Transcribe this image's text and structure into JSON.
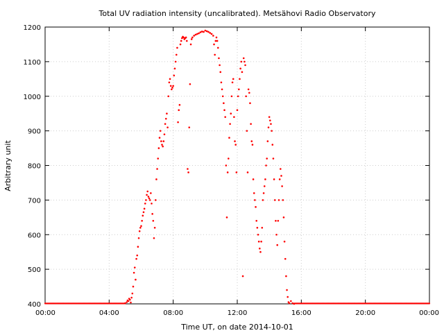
{
  "chart_data": {
    "type": "scatter",
    "title": "Total UV radiation intensity (uncalibrated). Metsähovi Radio Observatory",
    "xlabel": "Time UT, on date 2014-10-01",
    "ylabel": "Arbitrary unit",
    "x_unit": "hours UT",
    "xlim": [
      0,
      24
    ],
    "ylim": [
      400,
      1200
    ],
    "x_ticks": [
      {
        "value": 0,
        "label": "00:00"
      },
      {
        "value": 4,
        "label": "04:00"
      },
      {
        "value": 8,
        "label": "08:00"
      },
      {
        "value": 12,
        "label": "12:00"
      },
      {
        "value": 16,
        "label": "16:00"
      },
      {
        "value": 20,
        "label": "20:00"
      },
      {
        "value": 24,
        "label": "00:00"
      }
    ],
    "y_ticks": [
      400,
      500,
      600,
      700,
      800,
      900,
      1000,
      1100,
      1200
    ],
    "grid": true,
    "series_color": "#ff0000",
    "series": [
      {
        "points": [
          [
            5.0,
            402
          ],
          [
            5.1,
            405
          ],
          [
            5.15,
            410
          ],
          [
            5.2,
            408
          ],
          [
            5.25,
            415
          ],
          [
            5.3,
            412
          ],
          [
            5.35,
            404
          ],
          [
            5.4,
            418
          ],
          [
            5.45,
            430
          ],
          [
            5.5,
            450
          ],
          [
            5.55,
            490
          ],
          [
            5.6,
            505
          ],
          [
            5.65,
            470
          ],
          [
            5.7,
            530
          ],
          [
            5.75,
            540
          ],
          [
            5.8,
            565
          ],
          [
            5.85,
            590
          ],
          [
            5.9,
            610
          ],
          [
            5.95,
            620
          ],
          [
            6.0,
            625
          ],
          [
            6.05,
            640
          ],
          [
            6.1,
            655
          ],
          [
            6.15,
            665
          ],
          [
            6.2,
            675
          ],
          [
            6.25,
            690
          ],
          [
            6.3,
            700
          ],
          [
            6.35,
            715
          ],
          [
            6.4,
            725
          ],
          [
            6.45,
            710
          ],
          [
            6.5,
            705
          ],
          [
            6.55,
            700
          ],
          [
            6.6,
            720
          ],
          [
            6.65,
            690
          ],
          [
            6.7,
            660
          ],
          [
            6.75,
            640
          ],
          [
            6.8,
            590
          ],
          [
            6.85,
            620
          ],
          [
            6.9,
            700
          ],
          [
            6.95,
            760
          ],
          [
            7.0,
            790
          ],
          [
            7.05,
            820
          ],
          [
            7.1,
            850
          ],
          [
            7.15,
            880
          ],
          [
            7.2,
            900
          ],
          [
            7.25,
            870
          ],
          [
            7.3,
            860
          ],
          [
            7.35,
            855
          ],
          [
            7.4,
            870
          ],
          [
            7.45,
            890
          ],
          [
            7.5,
            920
          ],
          [
            7.55,
            935
          ],
          [
            7.6,
            950
          ],
          [
            7.65,
            910
          ],
          [
            7.7,
            1000
          ],
          [
            7.75,
            1040
          ],
          [
            7.8,
            1050
          ],
          [
            7.85,
            1030
          ],
          [
            7.9,
            1020
          ],
          [
            7.95,
            1025
          ],
          [
            8.0,
            1030
          ],
          [
            8.05,
            1060
          ],
          [
            8.1,
            1080
          ],
          [
            8.15,
            1100
          ],
          [
            8.2,
            1120
          ],
          [
            8.25,
            1140
          ],
          [
            8.3,
            925
          ],
          [
            8.35,
            960
          ],
          [
            8.4,
            975
          ],
          [
            8.45,
            1150
          ],
          [
            8.5,
            1160
          ],
          [
            8.55,
            1168
          ],
          [
            8.6,
            1172
          ],
          [
            8.65,
            1170
          ],
          [
            8.7,
            1165
          ],
          [
            8.75,
            1168
          ],
          [
            8.8,
            1170
          ],
          [
            8.85,
            1160
          ],
          [
            8.9,
            790
          ],
          [
            8.95,
            780
          ],
          [
            9.0,
            910
          ],
          [
            9.05,
            1035
          ],
          [
            9.1,
            1150
          ],
          [
            9.15,
            1165
          ],
          [
            9.2,
            1170
          ],
          [
            9.3,
            1175
          ],
          [
            9.4,
            1178
          ],
          [
            9.5,
            1180
          ],
          [
            9.6,
            1182
          ],
          [
            9.7,
            1185
          ],
          [
            9.8,
            1187
          ],
          [
            9.9,
            1186
          ],
          [
            10.0,
            1190
          ],
          [
            10.1,
            1188
          ],
          [
            10.2,
            1186
          ],
          [
            10.3,
            1183
          ],
          [
            10.4,
            1180
          ],
          [
            10.5,
            1175
          ],
          [
            10.55,
            1150
          ],
          [
            10.6,
            1120
          ],
          [
            10.65,
            1160
          ],
          [
            10.7,
            1170
          ],
          [
            10.75,
            1160
          ],
          [
            10.8,
            1140
          ],
          [
            10.85,
            1110
          ],
          [
            10.9,
            1090
          ],
          [
            10.95,
            1070
          ],
          [
            11.0,
            1040
          ],
          [
            11.05,
            1020
          ],
          [
            11.1,
            1000
          ],
          [
            11.15,
            980
          ],
          [
            11.2,
            960
          ],
          [
            11.25,
            940
          ],
          [
            11.3,
            800
          ],
          [
            11.35,
            650
          ],
          [
            11.4,
            780
          ],
          [
            11.45,
            820
          ],
          [
            11.5,
            880
          ],
          [
            11.55,
            920
          ],
          [
            11.6,
            950
          ],
          [
            11.65,
            1000
          ],
          [
            11.7,
            1040
          ],
          [
            11.75,
            1050
          ],
          [
            11.8,
            940
          ],
          [
            11.85,
            870
          ],
          [
            11.9,
            860
          ],
          [
            11.95,
            780
          ],
          [
            12.0,
            960
          ],
          [
            12.05,
            1000
          ],
          [
            12.1,
            1020
          ],
          [
            12.15,
            1050
          ],
          [
            12.2,
            1080
          ],
          [
            12.25,
            1100
          ],
          [
            12.3,
            1070
          ],
          [
            12.35,
            480
          ],
          [
            12.4,
            1110
          ],
          [
            12.45,
            1100
          ],
          [
            12.5,
            1090
          ],
          [
            12.55,
            1000
          ],
          [
            12.6,
            900
          ],
          [
            12.65,
            780
          ],
          [
            12.7,
            1020
          ],
          [
            12.75,
            1010
          ],
          [
            12.8,
            980
          ],
          [
            12.85,
            920
          ],
          [
            12.9,
            870
          ],
          [
            12.95,
            860
          ],
          [
            13.0,
            760
          ],
          [
            13.05,
            720
          ],
          [
            13.1,
            700
          ],
          [
            13.15,
            680
          ],
          [
            13.2,
            640
          ],
          [
            13.25,
            620
          ],
          [
            13.3,
            600
          ],
          [
            13.35,
            580
          ],
          [
            13.4,
            560
          ],
          [
            13.45,
            550
          ],
          [
            13.5,
            580
          ],
          [
            13.55,
            620
          ],
          [
            13.6,
            700
          ],
          [
            13.65,
            720
          ],
          [
            13.7,
            740
          ],
          [
            13.75,
            760
          ],
          [
            13.8,
            800
          ],
          [
            13.85,
            820
          ],
          [
            13.9,
            870
          ],
          [
            13.95,
            910
          ],
          [
            14.0,
            940
          ],
          [
            14.05,
            930
          ],
          [
            14.1,
            920
          ],
          [
            14.15,
            900
          ],
          [
            14.2,
            860
          ],
          [
            14.25,
            820
          ],
          [
            14.3,
            760
          ],
          [
            14.35,
            700
          ],
          [
            14.4,
            640
          ],
          [
            14.45,
            600
          ],
          [
            14.5,
            570
          ],
          [
            14.55,
            640
          ],
          [
            14.6,
            700
          ],
          [
            14.65,
            760
          ],
          [
            14.7,
            790
          ],
          [
            14.75,
            770
          ],
          [
            14.8,
            740
          ],
          [
            14.85,
            700
          ],
          [
            14.9,
            650
          ],
          [
            14.95,
            580
          ],
          [
            15.0,
            530
          ],
          [
            15.05,
            480
          ],
          [
            15.1,
            440
          ],
          [
            15.15,
            420
          ],
          [
            15.2,
            405
          ],
          [
            15.25,
            402
          ],
          [
            15.35,
            408
          ],
          [
            15.45,
            402
          ],
          [
            15.55,
            400
          ]
        ]
      }
    ]
  }
}
